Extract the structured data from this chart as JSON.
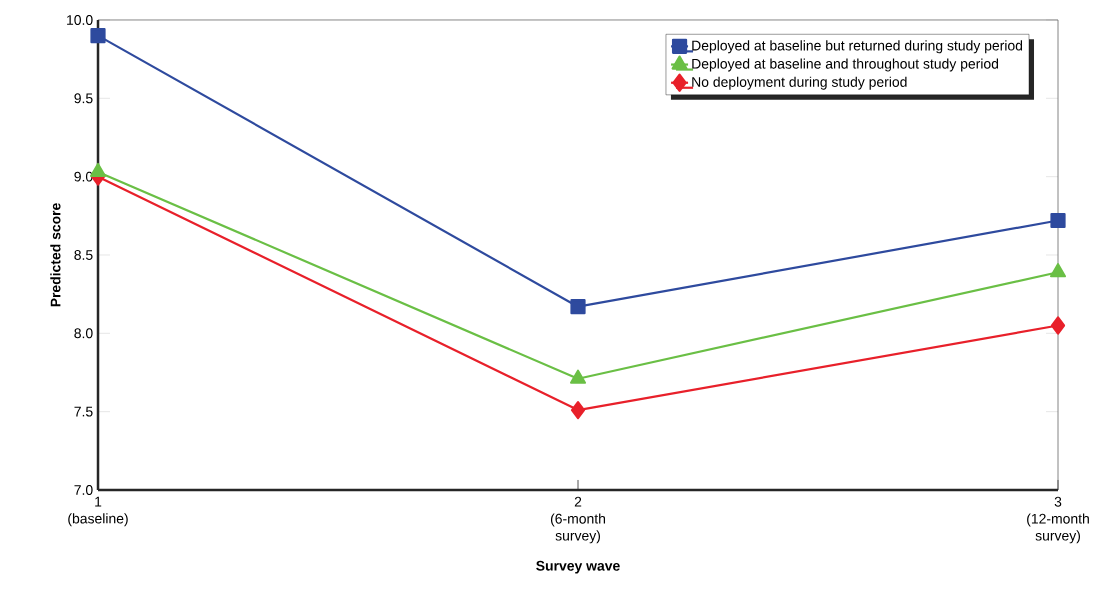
{
  "chart_data": {
    "type": "line",
    "xlabel": "Survey wave",
    "ylabel": "Predicted score",
    "categories": [
      "1 (baseline)",
      "2 (6-month survey)",
      "3 (12-month survey)"
    ],
    "series": [
      {
        "name": "Deployed at baseline but returned during study period",
        "color": "#2e4a9e",
        "marker": "square",
        "values": [
          9.9,
          8.17,
          8.72
        ]
      },
      {
        "name": "Deployed at baseline and throughout study period",
        "color": "#6abf45",
        "marker": "triangle",
        "values": [
          9.03,
          7.71,
          8.39
        ]
      },
      {
        "name": "No deployment during study period",
        "color": "#e8202a",
        "marker": "diamond",
        "values": [
          9.0,
          7.51,
          8.05
        ]
      }
    ],
    "ylim": [
      7.0,
      10.0
    ],
    "yticks": [
      {
        "value": 7.0,
        "label": "7.0"
      },
      {
        "value": 7.5,
        "label": "7.5"
      },
      {
        "value": 8.0,
        "label": "8.0"
      },
      {
        "value": 8.5,
        "label": "8.5"
      },
      {
        "value": 9.0,
        "label": "9.0"
      },
      {
        "value": 9.5,
        "label": "9.5"
      },
      {
        "value": 10.0,
        "label": "10.0"
      }
    ],
    "grid": false,
    "legend": "top right",
    "line_style": "solid"
  }
}
